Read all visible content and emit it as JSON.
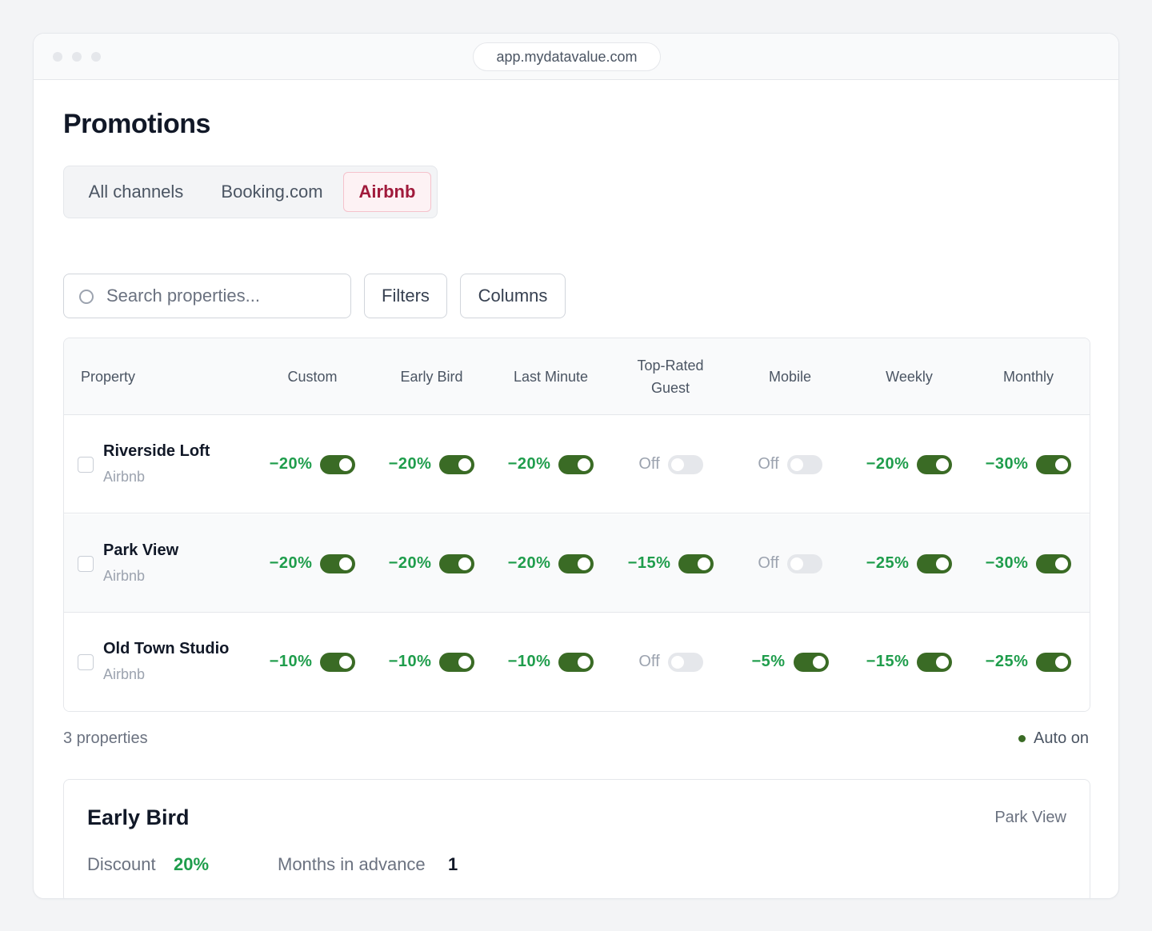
{
  "browser": {
    "url": "app.mydatavalue.com"
  },
  "page": {
    "title": "Promotions"
  },
  "tabs": [
    {
      "label": "All channels",
      "active": false
    },
    {
      "label": "Booking.com",
      "active": false
    },
    {
      "label": "Airbnb",
      "active": true
    }
  ],
  "toolbar": {
    "search_placeholder": "Search properties...",
    "filters_label": "Filters",
    "columns_label": "Columns"
  },
  "table": {
    "headers": [
      "Property",
      "Custom",
      "Early Bird",
      "Last Minute",
      "Top-Rated Guest",
      "Mobile",
      "Weekly",
      "Monthly"
    ],
    "rows": [
      {
        "name": "Riverside Loft",
        "channel": "Airbnb",
        "cells": [
          {
            "value": "−20%",
            "on": true
          },
          {
            "value": "−20%",
            "on": true
          },
          {
            "value": "−20%",
            "on": true
          },
          {
            "value": "Off",
            "on": false
          },
          {
            "value": "Off",
            "on": false
          },
          {
            "value": "−20%",
            "on": true
          },
          {
            "value": "−30%",
            "on": true
          }
        ]
      },
      {
        "name": "Park View",
        "channel": "Airbnb",
        "cells": [
          {
            "value": "−20%",
            "on": true
          },
          {
            "value": "−20%",
            "on": true
          },
          {
            "value": "−20%",
            "on": true
          },
          {
            "value": "−15%",
            "on": true
          },
          {
            "value": "Off",
            "on": false
          },
          {
            "value": "−25%",
            "on": true
          },
          {
            "value": "−30%",
            "on": true
          }
        ]
      },
      {
        "name": "Old Town Studio",
        "channel": "Airbnb",
        "cells": [
          {
            "value": "−10%",
            "on": true
          },
          {
            "value": "−10%",
            "on": true
          },
          {
            "value": "−10%",
            "on": true
          },
          {
            "value": "Off",
            "on": false
          },
          {
            "value": "−5%",
            "on": true
          },
          {
            "value": "−15%",
            "on": true
          },
          {
            "value": "−25%",
            "on": true
          }
        ]
      }
    ]
  },
  "footer": {
    "count_text": "3 properties",
    "auto_text": "Auto on"
  },
  "detail": {
    "title": "Early Bird",
    "property": "Park View",
    "discount_label": "Discount",
    "discount_value": "20%",
    "months_label": "Months in advance",
    "months_value": "1"
  },
  "colors": {
    "accent_green": "#1f9d4c",
    "toggle_on": "#3a6b25",
    "toggle_off": "#e5e7eb",
    "active_tab": "#a01a3b"
  },
  "icons": {
    "search": "search-icon",
    "status": "status-dot-icon"
  }
}
